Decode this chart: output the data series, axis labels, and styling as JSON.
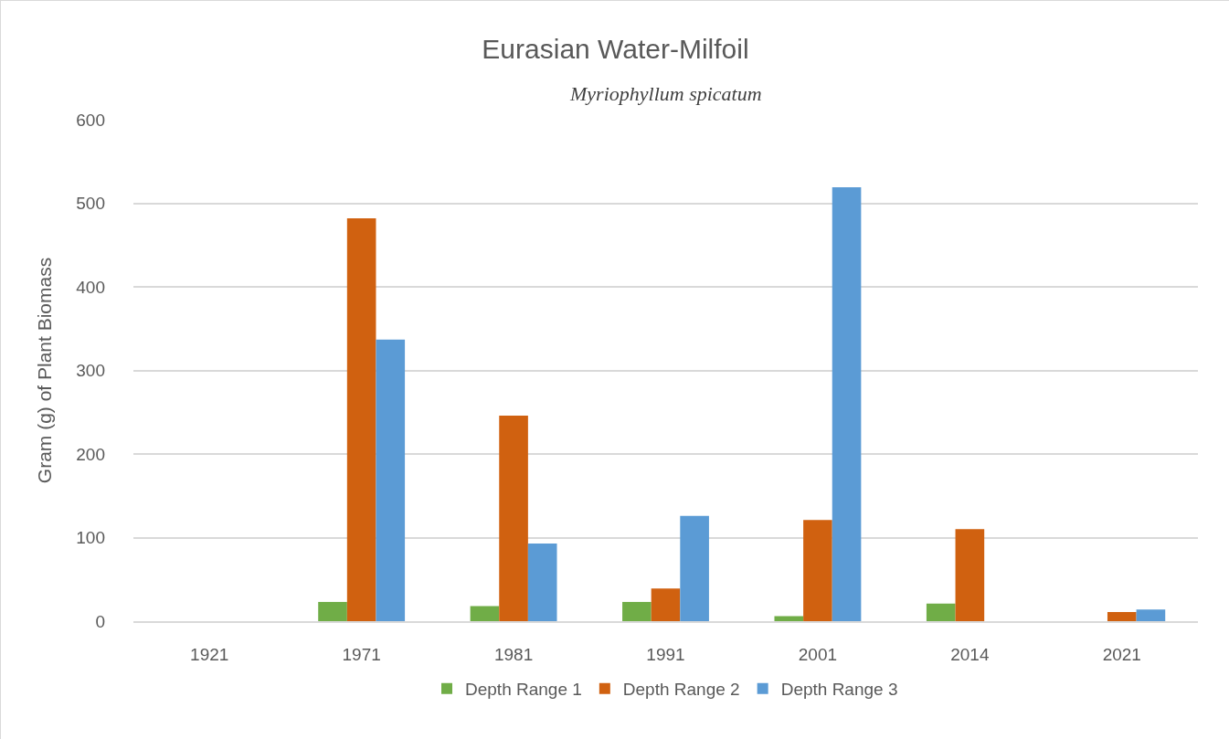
{
  "chart_data": {
    "type": "bar",
    "title": "Eurasian Water-Milfoil",
    "subtitle": "Myriophyllum spicatum",
    "ylabel": "Gram (g) of Plant Biomass",
    "categories": [
      "1921",
      "1971",
      "1981",
      "1991",
      "2001",
      "2014",
      "2021"
    ],
    "series": [
      {
        "name": "Depth Range 1",
        "color": "#70ad47",
        "values": [
          0,
          23,
          18,
          23,
          6,
          21,
          0
        ]
      },
      {
        "name": "Depth Range 2",
        "color": "#d06110",
        "values": [
          0,
          482,
          246,
          39,
          121,
          110,
          11
        ]
      },
      {
        "name": "Depth Range 3",
        "color": "#5b9bd5",
        "values": [
          0,
          337,
          93,
          126,
          519,
          0,
          14
        ]
      }
    ],
    "ylim": [
      0,
      600
    ],
    "yticks": [
      0,
      100,
      200,
      300,
      400,
      500,
      600
    ],
    "grid": "y",
    "legend": "bottom"
  }
}
